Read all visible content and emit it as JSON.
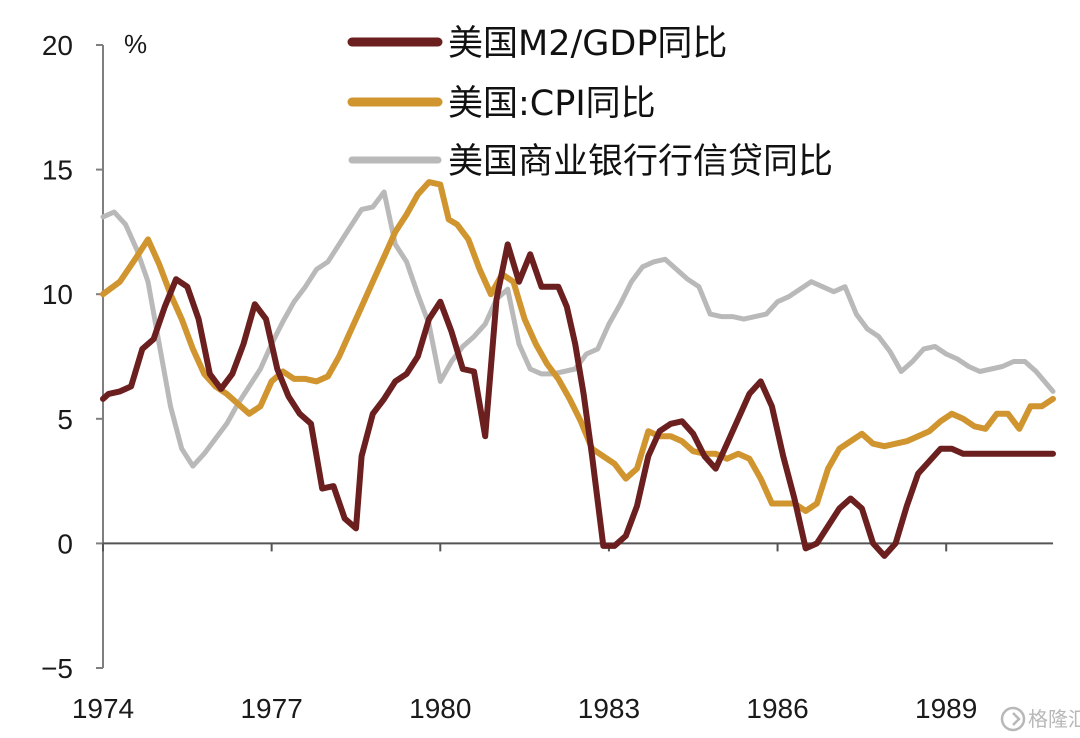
{
  "colors": {
    "m2_gdp": "#6b1f1f",
    "cpi": "#d0952f",
    "credit": "#b9b9b9",
    "axis": "#7f7f7f",
    "zero_line": "#555555"
  },
  "watermark": {
    "text": "格隆汇",
    "icon": "gelonghui-logo-icon"
  },
  "chart_data": {
    "type": "line",
    "title": "",
    "ylabel": "%",
    "xlabel": "",
    "ylim": [
      -5,
      20
    ],
    "xlim": [
      1974,
      1990.9
    ],
    "yticks": [
      -5,
      0,
      5,
      10,
      15,
      20
    ],
    "ytick_labels": [
      "−5",
      "0",
      "5",
      "10",
      "15",
      "20"
    ],
    "xticks": [
      1974,
      1977,
      1980,
      1983,
      1986,
      1989
    ],
    "xtick_labels": [
      "1974",
      "1977",
      "1980",
      "1983",
      "1986",
      "1989"
    ],
    "legend_position": "top",
    "series": [
      {
        "name": "美国M2/GDP同比",
        "key": "m2_gdp",
        "x": [
          1974.0,
          1974.1,
          1974.3,
          1974.5,
          1974.7,
          1974.9,
          1975.1,
          1975.3,
          1975.5,
          1975.7,
          1975.9,
          1976.1,
          1976.3,
          1976.5,
          1976.7,
          1976.9,
          1977.1,
          1977.3,
          1977.5,
          1977.7,
          1977.9,
          1978.1,
          1978.3,
          1978.5,
          1978.6,
          1978.8,
          1979.0,
          1979.2,
          1979.4,
          1979.6,
          1979.8,
          1980.0,
          1980.2,
          1980.4,
          1980.6,
          1980.8,
          1981.0,
          1981.2,
          1981.4,
          1981.6,
          1981.8,
          1982.0,
          1982.1,
          1982.25,
          1982.4,
          1982.55,
          1982.7,
          1982.9,
          1983.1,
          1983.3,
          1983.5,
          1983.7,
          1983.9,
          1984.1,
          1984.3,
          1984.5,
          1984.7,
          1984.9,
          1985.1,
          1985.3,
          1985.5,
          1985.7,
          1985.9,
          1986.1,
          1986.3,
          1986.5,
          1986.7,
          1986.9,
          1987.1,
          1987.3,
          1987.5,
          1987.7,
          1987.9,
          1988.1,
          1988.3,
          1988.5,
          1988.7,
          1988.9,
          1989.1,
          1989.3,
          1989.5,
          1989.7,
          1989.9,
          1990.1,
          1990.3,
          1990.5,
          1990.7,
          1990.9
        ],
        "values": [
          5.8,
          6.0,
          6.1,
          6.3,
          7.8,
          8.2,
          9.5,
          10.6,
          10.3,
          9.0,
          6.8,
          6.2,
          6.8,
          8.0,
          9.6,
          9.0,
          7.0,
          5.9,
          5.2,
          4.8,
          2.2,
          2.3,
          1.0,
          0.6,
          3.5,
          5.2,
          5.8,
          6.5,
          6.8,
          7.5,
          9.0,
          9.7,
          8.5,
          7.0,
          6.9,
          4.3,
          9.8,
          12.0,
          10.5,
          11.6,
          10.3,
          10.3,
          10.3,
          9.5,
          8.0,
          6.0,
          3.5,
          -0.1,
          -0.1,
          0.3,
          1.5,
          3.5,
          4.5,
          4.8,
          4.9,
          4.4,
          3.5,
          3.0,
          4.0,
          5.0,
          6.0,
          6.5,
          5.5,
          3.5,
          1.8,
          -0.2,
          0.0,
          0.7,
          1.4,
          1.8,
          1.4,
          0.0,
          -0.5,
          0.0,
          1.5,
          2.8,
          3.3,
          3.8,
          3.8,
          3.6,
          3.6,
          3.6,
          3.6,
          3.6,
          3.6,
          3.6,
          3.6,
          3.6
        ]
      },
      {
        "name": "美国:CPI同比",
        "key": "cpi",
        "x": [
          1974.0,
          1974.3,
          1974.6,
          1974.8,
          1975.0,
          1975.2,
          1975.4,
          1975.6,
          1975.8,
          1976.0,
          1976.2,
          1976.4,
          1976.6,
          1976.8,
          1977.0,
          1977.2,
          1977.4,
          1977.6,
          1977.8,
          1978.0,
          1978.2,
          1978.4,
          1978.6,
          1978.8,
          1979.0,
          1979.2,
          1979.4,
          1979.6,
          1979.8,
          1980.0,
          1980.15,
          1980.3,
          1980.5,
          1980.7,
          1980.9,
          1981.1,
          1981.3,
          1981.5,
          1981.7,
          1981.9,
          1982.1,
          1982.3,
          1982.5,
          1982.7,
          1982.9,
          1983.1,
          1983.3,
          1983.5,
          1983.7,
          1983.9,
          1984.1,
          1984.3,
          1984.5,
          1984.7,
          1984.9,
          1985.1,
          1985.3,
          1985.5,
          1985.7,
          1985.9,
          1986.1,
          1986.3,
          1986.5,
          1986.7,
          1986.9,
          1987.1,
          1987.3,
          1987.5,
          1987.7,
          1987.9,
          1988.1,
          1988.3,
          1988.5,
          1988.7,
          1988.9,
          1989.1,
          1989.3,
          1989.5,
          1989.7,
          1989.9,
          1990.1,
          1990.3,
          1990.5,
          1990.7,
          1990.9
        ],
        "values": [
          10.0,
          10.5,
          11.5,
          12.2,
          11.2,
          10.0,
          9.0,
          7.8,
          6.8,
          6.3,
          6.0,
          5.6,
          5.2,
          5.5,
          6.5,
          6.9,
          6.6,
          6.6,
          6.5,
          6.7,
          7.5,
          8.5,
          9.5,
          10.5,
          11.5,
          12.5,
          13.2,
          14.0,
          14.5,
          14.4,
          13.0,
          12.8,
          12.2,
          11.0,
          10.0,
          10.8,
          10.5,
          9.0,
          8.0,
          7.2,
          6.6,
          5.8,
          4.9,
          3.8,
          3.5,
          3.2,
          2.6,
          3.0,
          4.5,
          4.3,
          4.3,
          4.1,
          3.7,
          3.6,
          3.6,
          3.4,
          3.6,
          3.4,
          2.6,
          1.6,
          1.6,
          1.6,
          1.3,
          1.6,
          3.0,
          3.8,
          4.1,
          4.4,
          4.0,
          3.9,
          4.0,
          4.1,
          4.3,
          4.5,
          4.9,
          5.2,
          5.0,
          4.7,
          4.6,
          5.2,
          5.2,
          4.6,
          5.5,
          5.5,
          5.8
        ]
      },
      {
        "name": "美国商业银行行信贷同比",
        "key": "credit",
        "x": [
          1974.0,
          1974.2,
          1974.4,
          1974.6,
          1974.8,
          1975.0,
          1975.2,
          1975.4,
          1975.6,
          1975.8,
          1976.0,
          1976.2,
          1976.4,
          1976.6,
          1976.8,
          1977.0,
          1977.2,
          1977.4,
          1977.6,
          1977.8,
          1978.0,
          1978.2,
          1978.4,
          1978.6,
          1978.8,
          1979.0,
          1979.2,
          1979.4,
          1979.6,
          1979.8,
          1980.0,
          1980.2,
          1980.4,
          1980.6,
          1980.8,
          1981.0,
          1981.2,
          1981.4,
          1981.6,
          1981.8,
          1982.0,
          1982.2,
          1982.4,
          1982.6,
          1982.8,
          1983.0,
          1983.2,
          1983.4,
          1983.6,
          1983.8,
          1984.0,
          1984.2,
          1984.4,
          1984.6,
          1984.8,
          1985.0,
          1985.2,
          1985.4,
          1985.6,
          1985.8,
          1986.0,
          1986.2,
          1986.4,
          1986.6,
          1986.8,
          1987.0,
          1987.2,
          1987.4,
          1987.6,
          1987.8,
          1988.0,
          1988.2,
          1988.4,
          1988.6,
          1988.8,
          1989.0,
          1989.2,
          1989.4,
          1989.6,
          1989.8,
          1990.0,
          1990.2,
          1990.4,
          1990.6,
          1990.9
        ],
        "values": [
          13.1,
          13.3,
          12.8,
          11.8,
          10.5,
          8.0,
          5.5,
          3.8,
          3.1,
          3.6,
          4.2,
          4.8,
          5.6,
          6.3,
          7.0,
          8.0,
          8.9,
          9.7,
          10.3,
          11.0,
          11.3,
          12.0,
          12.7,
          13.4,
          13.5,
          14.1,
          12.0,
          11.3,
          10.0,
          8.8,
          6.5,
          7.3,
          7.9,
          8.3,
          8.8,
          9.8,
          10.2,
          8.0,
          7.0,
          6.8,
          6.8,
          6.9,
          7.0,
          7.6,
          7.8,
          8.8,
          9.6,
          10.5,
          11.1,
          11.3,
          11.4,
          11.0,
          10.6,
          10.3,
          9.2,
          9.1,
          9.1,
          9.0,
          9.1,
          9.2,
          9.7,
          9.9,
          10.2,
          10.5,
          10.3,
          10.1,
          10.3,
          9.2,
          8.6,
          8.3,
          7.7,
          6.9,
          7.3,
          7.8,
          7.9,
          7.6,
          7.4,
          7.1,
          6.9,
          7.0,
          7.1,
          7.3,
          7.3,
          6.9,
          6.1
        ]
      }
    ]
  }
}
